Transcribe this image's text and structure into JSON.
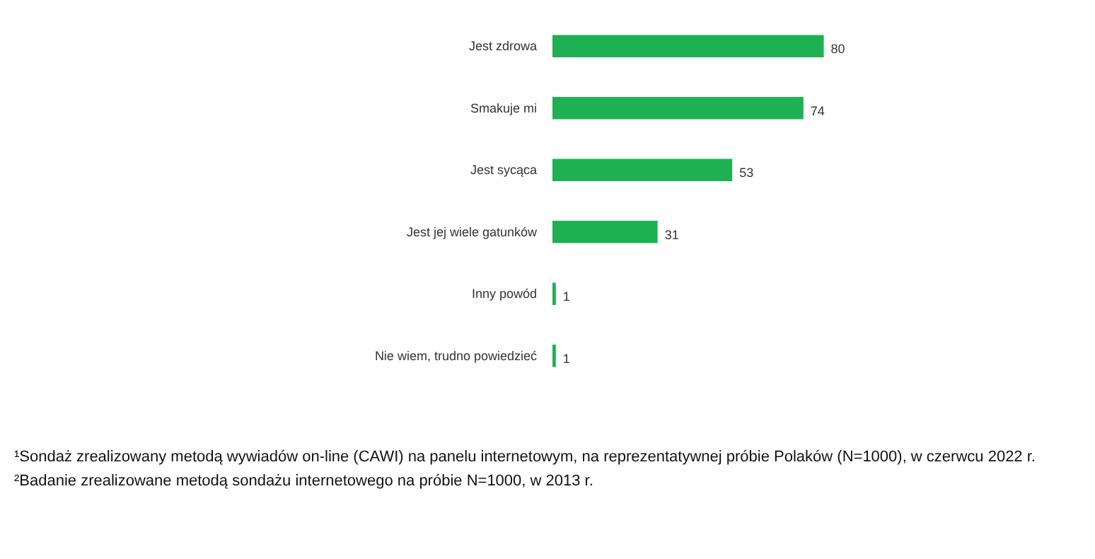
{
  "chart_data": {
    "type": "bar",
    "orientation": "horizontal",
    "categories": [
      "Jest zdrowa",
      "Smakuje mi",
      "Jest sycąca",
      "Jest jej wiele gatunków",
      "Inny powód",
      "Nie wiem, trudno powiedzieć"
    ],
    "values": [
      80,
      74,
      53,
      31,
      1,
      1
    ],
    "color": "#1db154",
    "data_labels": true,
    "grid": false,
    "annotations": [
      "¹Sondaż zrealizowany metodą wywiadów on-line (CAWI) na panelu internetowym, na reprezentatywnej próbie Polaków (N=1000), w czerwcu 2022 r.",
      "²Badanie zrealizowane metodą sondażu internetowego na próbie N=1000, w 2013 r."
    ]
  }
}
